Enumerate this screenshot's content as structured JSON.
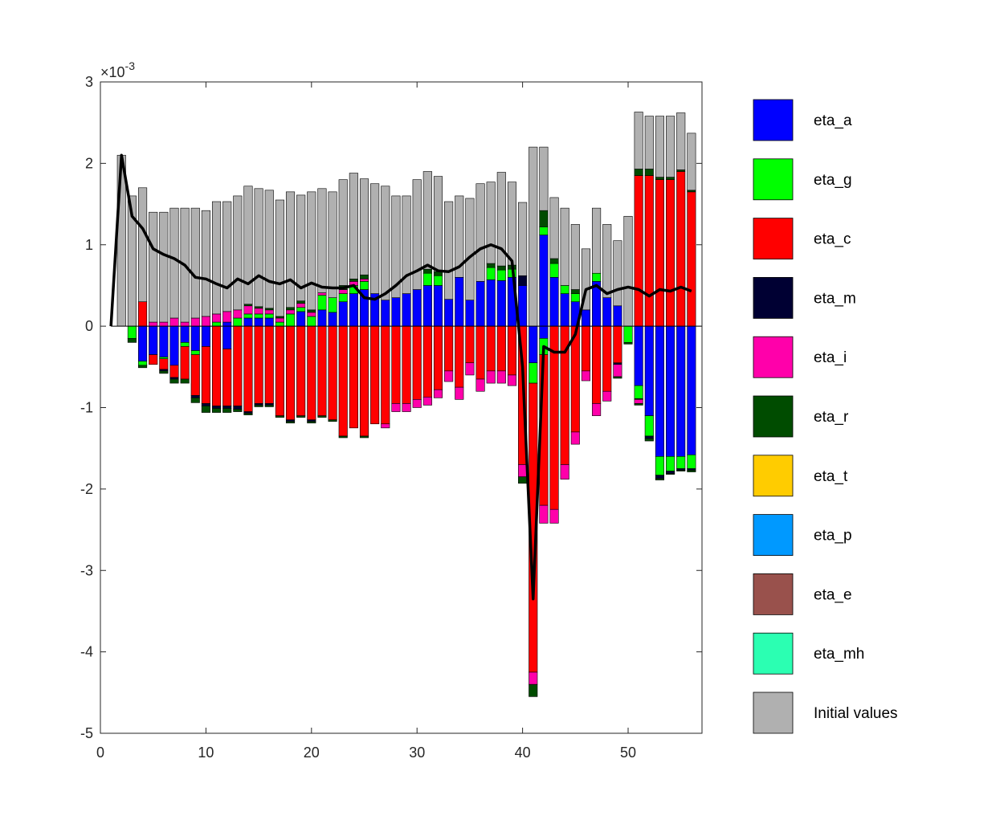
{
  "chart_data": {
    "type": "bar",
    "stacked": true,
    "title": "",
    "xlabel": "",
    "ylabel": "",
    "y_exponent_label": "×10",
    "y_exponent_power": "-3",
    "xlim": [
      0,
      57
    ],
    "ylim": [
      -5,
      3
    ],
    "xticks": [
      "0",
      "10",
      "20",
      "30",
      "40",
      "50"
    ],
    "yticks": [
      "3",
      "2",
      "1",
      "0",
      "-1",
      "-2",
      "-3",
      "-4",
      "-5"
    ],
    "legend_position": "right",
    "x": [
      2,
      3,
      4,
      5,
      6,
      7,
      8,
      9,
      10,
      11,
      12,
      13,
      14,
      15,
      16,
      17,
      18,
      19,
      20,
      21,
      22,
      23,
      24,
      25,
      26,
      27,
      28,
      29,
      30,
      31,
      32,
      33,
      34,
      35,
      36,
      37,
      38,
      39,
      40,
      41,
      42,
      43,
      44,
      45,
      46,
      47,
      48,
      49,
      50,
      51,
      52,
      53,
      54,
      55,
      56
    ],
    "series": [
      {
        "name": "eta_a",
        "color": "#0000FF",
        "pos": [
          0,
          0,
          0,
          0,
          0,
          0,
          0,
          0,
          0,
          0,
          0.05,
          0,
          0.1,
          0.1,
          0.1,
          0,
          0,
          0.18,
          0,
          0.2,
          0.17,
          0.3,
          0.4,
          0.45,
          0.4,
          0.32,
          0.35,
          0.4,
          0.45,
          0.5,
          0.5,
          0.33,
          0.6,
          0.32,
          0.55,
          0.57,
          0.56,
          0.6,
          0.5,
          0,
          1.12,
          0.6,
          0.4,
          0.3,
          0.2,
          0.55,
          0.35,
          0.25,
          0,
          0,
          0,
          0,
          0,
          0,
          0
        ],
        "neg": [
          0,
          0,
          -0.43,
          -0.35,
          -0.38,
          -0.48,
          -0.2,
          -0.3,
          -0.25,
          0,
          -0.28,
          0,
          0,
          0,
          0,
          0,
          0,
          0,
          0,
          0,
          0,
          0,
          0,
          0,
          0,
          0,
          0,
          0,
          0,
          0,
          0,
          0,
          0,
          0,
          0,
          0,
          0,
          0,
          0,
          -0.45,
          -0.15,
          0,
          0,
          0,
          0,
          0,
          0,
          0,
          0,
          -0.73,
          -1.1,
          -1.6,
          -1.6,
          -1.6,
          -1.58
        ]
      },
      {
        "name": "eta_g",
        "color": "#00FF00",
        "pos": [
          0,
          0,
          0,
          0,
          0,
          0,
          0,
          0,
          0,
          0.05,
          0,
          0.1,
          0.05,
          0.05,
          0.05,
          0.05,
          0.15,
          0.05,
          0.12,
          0.18,
          0.18,
          0.1,
          0.1,
          0.1,
          0,
          0,
          0,
          0,
          0,
          0.15,
          0.12,
          0,
          0,
          0,
          0,
          0.15,
          0.13,
          0.1,
          0,
          0,
          0.1,
          0.17,
          0.1,
          0.1,
          0,
          0.1,
          0,
          0,
          0,
          0,
          0,
          0,
          0,
          0,
          0
        ],
        "neg": [
          0,
          -0.15,
          -0.05,
          0,
          -0.02,
          0,
          -0.05,
          -0.05,
          0,
          0,
          0,
          0,
          0,
          0,
          0,
          0,
          0,
          0,
          0,
          0,
          0,
          0,
          0,
          0,
          0,
          0,
          0,
          0,
          0,
          0,
          0,
          0,
          0,
          0,
          0,
          0,
          0,
          0,
          0,
          -0.25,
          -0.2,
          0,
          0,
          0,
          0,
          0,
          0,
          0,
          -0.2,
          -0.16,
          -0.25,
          -0.23,
          -0.18,
          -0.15,
          -0.17
        ]
      },
      {
        "name": "eta_c",
        "color": "#FF0000",
        "pos": [
          0,
          0,
          0.3,
          0,
          0,
          0,
          0,
          0,
          0,
          0,
          0,
          0,
          0,
          0,
          0,
          0,
          0,
          0,
          0,
          0,
          0,
          0,
          0,
          0,
          0,
          0,
          0,
          0,
          0,
          0,
          0,
          0,
          0,
          0,
          0,
          0,
          0,
          0,
          0,
          0,
          0,
          0,
          0,
          0,
          0,
          0,
          0,
          0,
          0,
          1.85,
          1.85,
          1.8,
          1.8,
          1.9,
          1.65
        ],
        "neg": [
          0,
          0,
          0,
          -0.12,
          -0.13,
          -0.15,
          -0.4,
          -0.5,
          -0.7,
          -0.98,
          -0.7,
          -0.98,
          -1.05,
          -0.95,
          -0.95,
          -1.1,
          -1.15,
          -1.1,
          -1.15,
          -1.1,
          -1.15,
          -1.35,
          -1.25,
          -1.35,
          -1.2,
          -1.2,
          -0.95,
          -0.95,
          -0.9,
          -0.87,
          -0.78,
          -0.55,
          -0.75,
          -0.45,
          -0.65,
          -0.55,
          -0.55,
          -0.6,
          -1.7,
          -3.55,
          -1.85,
          -2.25,
          -1.7,
          -1.3,
          -0.55,
          -0.95,
          -0.8,
          -0.45,
          0,
          0,
          0,
          0,
          0,
          0,
          0
        ]
      },
      {
        "name": "eta_m",
        "color": "#000033",
        "pos": [
          0,
          0,
          0,
          0,
          0,
          0,
          0,
          0,
          0,
          0,
          0,
          0,
          0,
          0,
          0,
          0,
          0,
          0,
          0,
          0,
          0,
          0,
          0,
          0,
          0,
          0,
          0,
          0,
          0,
          0,
          0,
          0,
          0,
          0,
          0,
          0,
          0,
          0,
          0.12,
          0,
          0,
          0,
          0,
          0,
          0,
          0,
          0,
          0,
          0,
          0,
          0,
          0,
          0,
          0,
          0
        ],
        "neg": [
          0,
          0,
          0,
          0,
          -0.02,
          -0.02,
          0,
          -0.03,
          -0.03,
          -0.03,
          -0.03,
          -0.04,
          -0.02,
          -0.02,
          -0.02,
          0,
          -0.02,
          0,
          -0.02,
          0,
          0,
          0,
          0,
          0,
          0,
          0,
          0,
          0,
          0,
          0,
          0,
          0,
          0,
          0,
          0,
          0,
          0,
          0,
          0,
          0,
          0,
          0,
          0,
          0,
          0,
          0,
          0,
          -0.02,
          0,
          -0.01,
          -0.03,
          -0.04,
          -0.03,
          -0.02,
          -0.02
        ]
      },
      {
        "name": "eta_i",
        "color": "#FF00AA",
        "pos": [
          0,
          0,
          0,
          0.05,
          0.05,
          0.1,
          0.05,
          0.1,
          0.12,
          0.1,
          0.13,
          0.1,
          0.1,
          0.07,
          0.05,
          0.05,
          0.05,
          0.05,
          0.05,
          0.03,
          0,
          0.05,
          0.05,
          0.03,
          0,
          0,
          0,
          0,
          0,
          0,
          0,
          0,
          0,
          0,
          0,
          0,
          0,
          0,
          0,
          0,
          0,
          0,
          0,
          0,
          0,
          0,
          0,
          0,
          0,
          0,
          0,
          0,
          0,
          0,
          0
        ],
        "neg": [
          0,
          0,
          0,
          0,
          0,
          0,
          0,
          0,
          0,
          0,
          0,
          0,
          0,
          0,
          0,
          0,
          0,
          0,
          0,
          0,
          0,
          0,
          0,
          0,
          0,
          -0.05,
          -0.1,
          -0.1,
          -0.1,
          -0.1,
          -0.1,
          -0.13,
          -0.15,
          -0.15,
          -0.15,
          -0.15,
          -0.15,
          -0.13,
          -0.15,
          -0.15,
          -0.22,
          -0.17,
          -0.18,
          -0.15,
          -0.12,
          -0.15,
          -0.12,
          -0.15,
          0,
          -0.05,
          0,
          0,
          0,
          0,
          0
        ]
      },
      {
        "name": "eta_r",
        "color": "#004C00",
        "pos": [
          0,
          0,
          0,
          0,
          0,
          0,
          0,
          0,
          0,
          0,
          0,
          0,
          0.02,
          0.02,
          0.02,
          0.02,
          0.03,
          0.03,
          0.03,
          0,
          0,
          0.05,
          0.03,
          0.05,
          0,
          0,
          0,
          0,
          0,
          0.05,
          0.05,
          0,
          0,
          0,
          0,
          0.05,
          0.05,
          0.05,
          0,
          0,
          0.2,
          0.06,
          0,
          0.05,
          0,
          0,
          0,
          0,
          0,
          0.08,
          0.08,
          0.03,
          0.03,
          0.02,
          0.02
        ],
        "neg": [
          0,
          -0.05,
          -0.03,
          0,
          -0.03,
          -0.05,
          -0.05,
          -0.06,
          -0.08,
          -0.05,
          -0.05,
          -0.03,
          -0.02,
          -0.02,
          -0.02,
          -0.02,
          -0.02,
          -0.02,
          -0.02,
          -0.02,
          -0.02,
          -0.02,
          0,
          -0.02,
          0,
          0,
          0,
          0,
          0,
          0,
          0,
          0,
          0,
          0,
          0,
          0,
          0,
          0,
          -0.08,
          -0.15,
          0,
          0,
          0,
          0,
          0,
          0,
          0,
          -0.02,
          -0.02,
          -0.02,
          -0.03,
          -0.02,
          -0.01,
          -0.01,
          -0.02
        ]
      },
      {
        "name": "eta_t",
        "color": "#FFCC00",
        "pos": [],
        "neg": []
      },
      {
        "name": "eta_p",
        "color": "#0099FF",
        "pos": [],
        "neg": []
      },
      {
        "name": "eta_e",
        "color": "#99514C",
        "pos": [],
        "neg": []
      },
      {
        "name": "eta_mh",
        "color": "#2BFFB2",
        "pos": [],
        "neg": []
      },
      {
        "name": "Initial values",
        "color": "#B0B0B0",
        "pos": [
          2.1,
          1.6,
          1.4,
          1.35,
          1.35,
          1.35,
          1.4,
          1.35,
          1.3,
          1.38,
          1.35,
          1.4,
          1.45,
          1.45,
          1.45,
          1.43,
          1.42,
          1.3,
          1.45,
          1.28,
          1.3,
          1.3,
          1.3,
          1.18,
          1.35,
          1.4,
          1.25,
          1.2,
          1.35,
          1.2,
          1.17,
          1.2,
          1.0,
          1.25,
          1.2,
          1.0,
          1.15,
          1.02,
          0.9,
          2.2,
          0.78,
          0.75,
          0.95,
          0.8,
          0.75,
          0.8,
          0.9,
          0.8,
          1.35,
          0.7,
          0.65,
          0.75,
          0.75,
          0.7,
          0.7
        ],
        "neg": []
      }
    ],
    "line": {
      "name": "",
      "color": "#000000",
      "x": [
        1,
        2,
        3,
        4,
        5,
        6,
        7,
        8,
        9,
        10,
        11,
        12,
        13,
        14,
        15,
        16,
        17,
        18,
        19,
        20,
        21,
        22,
        23,
        24,
        25,
        26,
        27,
        28,
        29,
        30,
        31,
        32,
        33,
        34,
        35,
        36,
        37,
        38,
        39,
        40,
        41,
        42,
        43,
        44,
        45,
        46,
        47,
        48,
        49,
        50,
        51,
        52,
        53,
        54,
        55,
        56
      ],
      "y": [
        0,
        2.1,
        1.35,
        1.2,
        0.95,
        0.88,
        0.83,
        0.75,
        0.6,
        0.58,
        0.52,
        0.47,
        0.58,
        0.52,
        0.62,
        0.55,
        0.52,
        0.57,
        0.47,
        0.53,
        0.48,
        0.47,
        0.47,
        0.5,
        0.35,
        0.33,
        0.4,
        0.5,
        0.62,
        0.68,
        0.75,
        0.68,
        0.67,
        0.73,
        0.85,
        0.95,
        1.0,
        0.95,
        0.8,
        -0.5,
        -3.35,
        -0.25,
        -0.32,
        -0.32,
        -0.1,
        0.45,
        0.5,
        0.4,
        0.45,
        0.48,
        0.45,
        0.37,
        0.45,
        0.43,
        0.48,
        0.43
      ]
    }
  },
  "legend": {
    "items": [
      {
        "name": "eta_a",
        "color": "#0000FF"
      },
      {
        "name": "eta_g",
        "color": "#00FF00"
      },
      {
        "name": "eta_c",
        "color": "#FF0000"
      },
      {
        "name": "eta_m",
        "color": "#000033"
      },
      {
        "name": "eta_i",
        "color": "#FF00AA"
      },
      {
        "name": "eta_r",
        "color": "#004C00"
      },
      {
        "name": "eta_t",
        "color": "#FFCC00"
      },
      {
        "name": "eta_p",
        "color": "#0099FF"
      },
      {
        "name": "eta_e",
        "color": "#99514C"
      },
      {
        "name": "eta_mh",
        "color": "#2BFFB2"
      },
      {
        "name": "Initial values",
        "color": "#B0B0B0"
      }
    ]
  }
}
